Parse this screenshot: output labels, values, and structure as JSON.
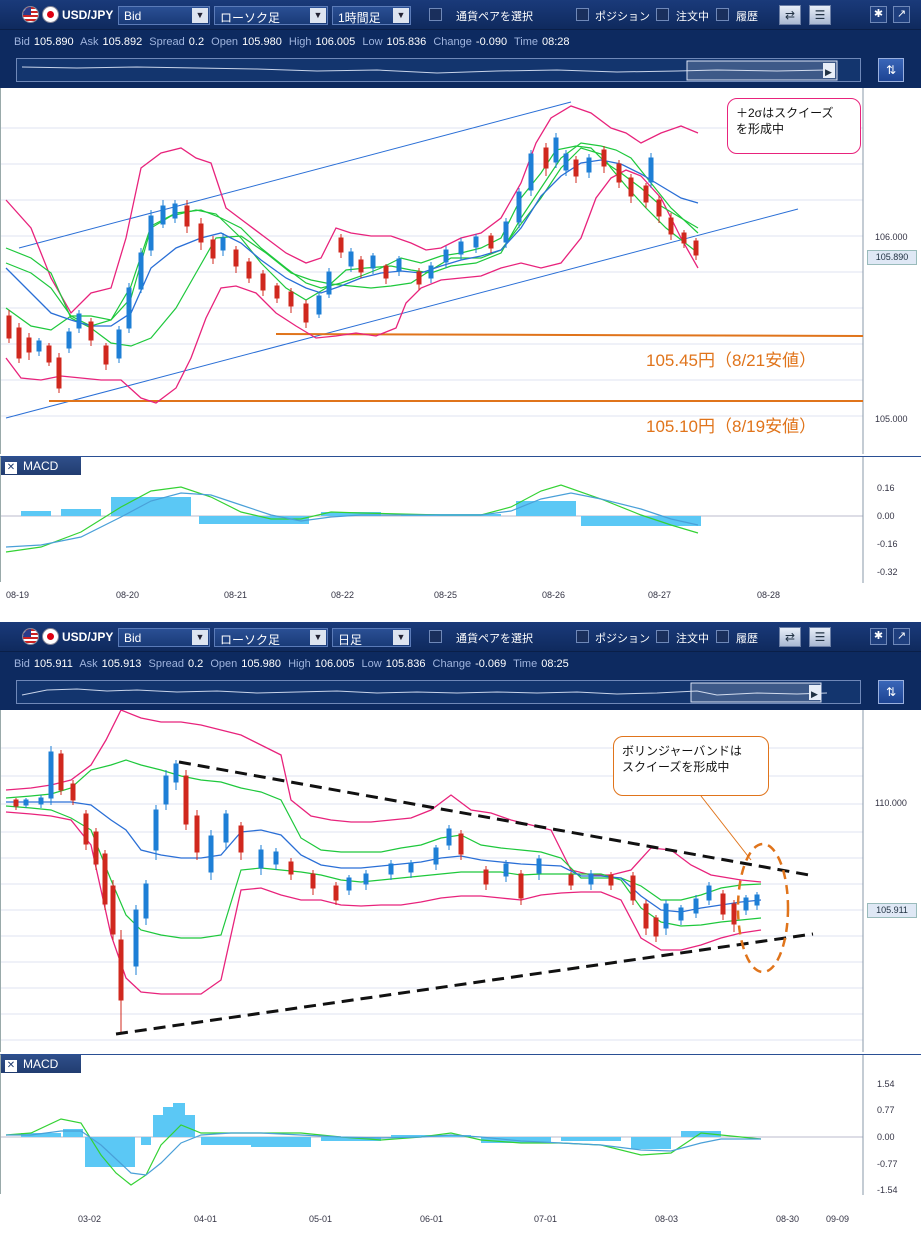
{
  "panels": [
    {
      "toolbar": {
        "pair": "USD/JPY",
        "price_type": "Bid",
        "chart_type": "ローソク足",
        "timeframe": "1時間足",
        "select_pair_label": "通貨ペアを選択",
        "position_label": "ポジション",
        "order_label": "注文中",
        "history_label": "履歴"
      },
      "quote": {
        "bid_label": "Bid",
        "bid": "105.890",
        "ask_label": "Ask",
        "ask": "105.892",
        "spread_label": "Spread",
        "spread": "0.2",
        "open_label": "Open",
        "open": "105.980",
        "high_label": "High",
        "high": "106.005",
        "low_label": "Low",
        "low": "105.836",
        "change_label": "Change",
        "change": "-0.090",
        "time_label": "Time",
        "time": "08:28"
      },
      "price_tag": "105.890",
      "y_ticks": [
        "106.000",
        "105.000"
      ],
      "macd_title": "MACD",
      "macd_ticks": [
        "0.16",
        "0.00",
        "-0.16",
        "-0.32"
      ],
      "x_ticks": [
        "08-19",
        "08-20",
        "08-21",
        "08-22",
        "08-25",
        "08-26",
        "08-27",
        "08-28"
      ],
      "annotations": {
        "callout": [
          "＋2σはスクイーズ",
          "を形成中"
        ],
        "level1": "105.45円（8/21安値）",
        "level2": "105.10円（8/19安値）"
      }
    },
    {
      "toolbar": {
        "pair": "USD/JPY",
        "price_type": "Bid",
        "chart_type": "ローソク足",
        "timeframe": "日足",
        "select_pair_label": "通貨ペアを選択",
        "position_label": "ポジション",
        "order_label": "注文中",
        "history_label": "履歴"
      },
      "quote": {
        "bid_label": "Bid",
        "bid": "105.911",
        "ask_label": "Ask",
        "ask": "105.913",
        "spread_label": "Spread",
        "spread": "0.2",
        "open_label": "Open",
        "open": "105.980",
        "high_label": "High",
        "high": "106.005",
        "low_label": "Low",
        "low": "105.836",
        "change_label": "Change",
        "change": "-0.069",
        "time_label": "Time",
        "time": "08:25"
      },
      "price_tag": "105.911",
      "y_ticks": [
        "110.000"
      ],
      "macd_title": "MACD",
      "macd_ticks": [
        "1.54",
        "0.77",
        "0.00",
        "-0.77",
        "-1.54"
      ],
      "x_ticks": [
        "03-02",
        "04-01",
        "05-01",
        "06-01",
        "07-01",
        "08-03",
        "08-30",
        "09-09"
      ],
      "annotations": {
        "callout": [
          "ボリンジャーバンドは",
          "スクイーズを形成中"
        ]
      }
    }
  ],
  "colors": {
    "toolbar_bg": "#0f2a5e",
    "bull_candle": "#1e7fd6",
    "bear_candle": "#d0281e",
    "band_2sigma": "#e8237c",
    "band_1sigma": "#1ec83c",
    "sma": "#2a6fd6",
    "support_line": "#e0741b",
    "macd_hist": "#5bc8f5",
    "macd_line": "#34d234",
    "signal_line": "#4aa0d8"
  }
}
